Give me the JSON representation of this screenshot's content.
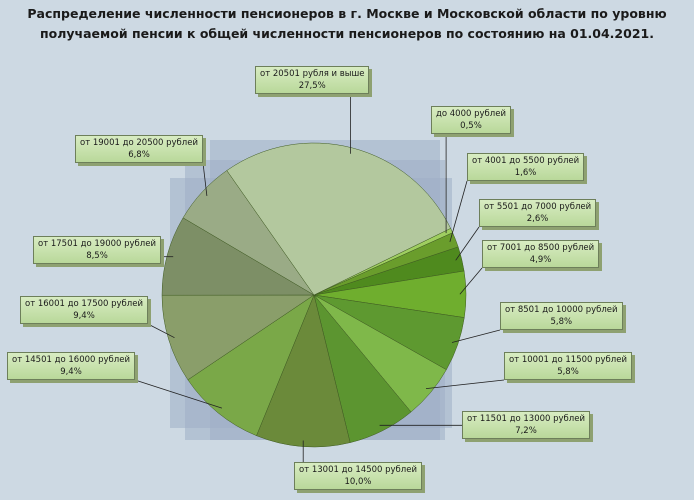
{
  "chart_data": {
    "type": "pie",
    "title_lines": [
      "Распределение численности пенсионеров в г. Москве и Московской области по уровню",
      "получаемой пенсии  к общей численности пенсионеров по состоянию на 01.04.2021."
    ],
    "slices": [
      {
        "label": "до 4000 рублей",
        "value_text": "0,5%",
        "value": 0.5,
        "color": "#9fce60"
      },
      {
        "label": "от 4001 до 5500 рублей",
        "value_text": "1,6%",
        "value": 1.6,
        "color": "#6a9d2c"
      },
      {
        "label": "от 5501 до 7000 рублей",
        "value_text": "2,6%",
        "value": 2.6,
        "color": "#4f8a1e"
      },
      {
        "label": "от 7001 до 8500 рублей",
        "value_text": "4,9%",
        "value": 4.9,
        "color": "#6fae2e"
      },
      {
        "label": "от 8501 до 10000 рублей",
        "value_text": "5,8%",
        "value": 5.8,
        "color": "#5e9930"
      },
      {
        "label": "от 10001 до 11500 рублей",
        "value_text": "5,8%",
        "value": 5.8,
        "color": "#7fb84a"
      },
      {
        "label": "от 11501 до 13000 рублей",
        "value_text": "7,2%",
        "value": 7.2,
        "color": "#5c9530"
      },
      {
        "label": "от 13001 до 14500 рублей",
        "value_text": "10,0%",
        "value": 10.0,
        "color": "#6b8a3a"
      },
      {
        "label": "от 14501 до 16000 рублей",
        "value_text": "9,4%",
        "value": 9.4,
        "color": "#7aa848"
      },
      {
        "label": "от 16001 до 17500 рублей",
        "value_text": "9,4%",
        "value": 9.4,
        "color": "#8a9e6a"
      },
      {
        "label": "от 17501 до 19000 рублей",
        "value_text": "8,5%",
        "value": 8.5,
        "color": "#7d8f66"
      },
      {
        "label": "от 19001 до 20500 рублей",
        "value_text": "6,8%",
        "value": 6.8,
        "color": "#9aab86"
      },
      {
        "label": "от 20501 рубля и выше",
        "value_text": "27,5%",
        "value": 27.5,
        "color": "#b3c89e"
      }
    ],
    "start_angle_deg": 64,
    "legend": "none",
    "title": "Распределение численности пенсионеров в г. Москве и Московской области по уровню получаемой пенсии  к общей численности пенсионеров по состоянию на 01.04.2021."
  }
}
